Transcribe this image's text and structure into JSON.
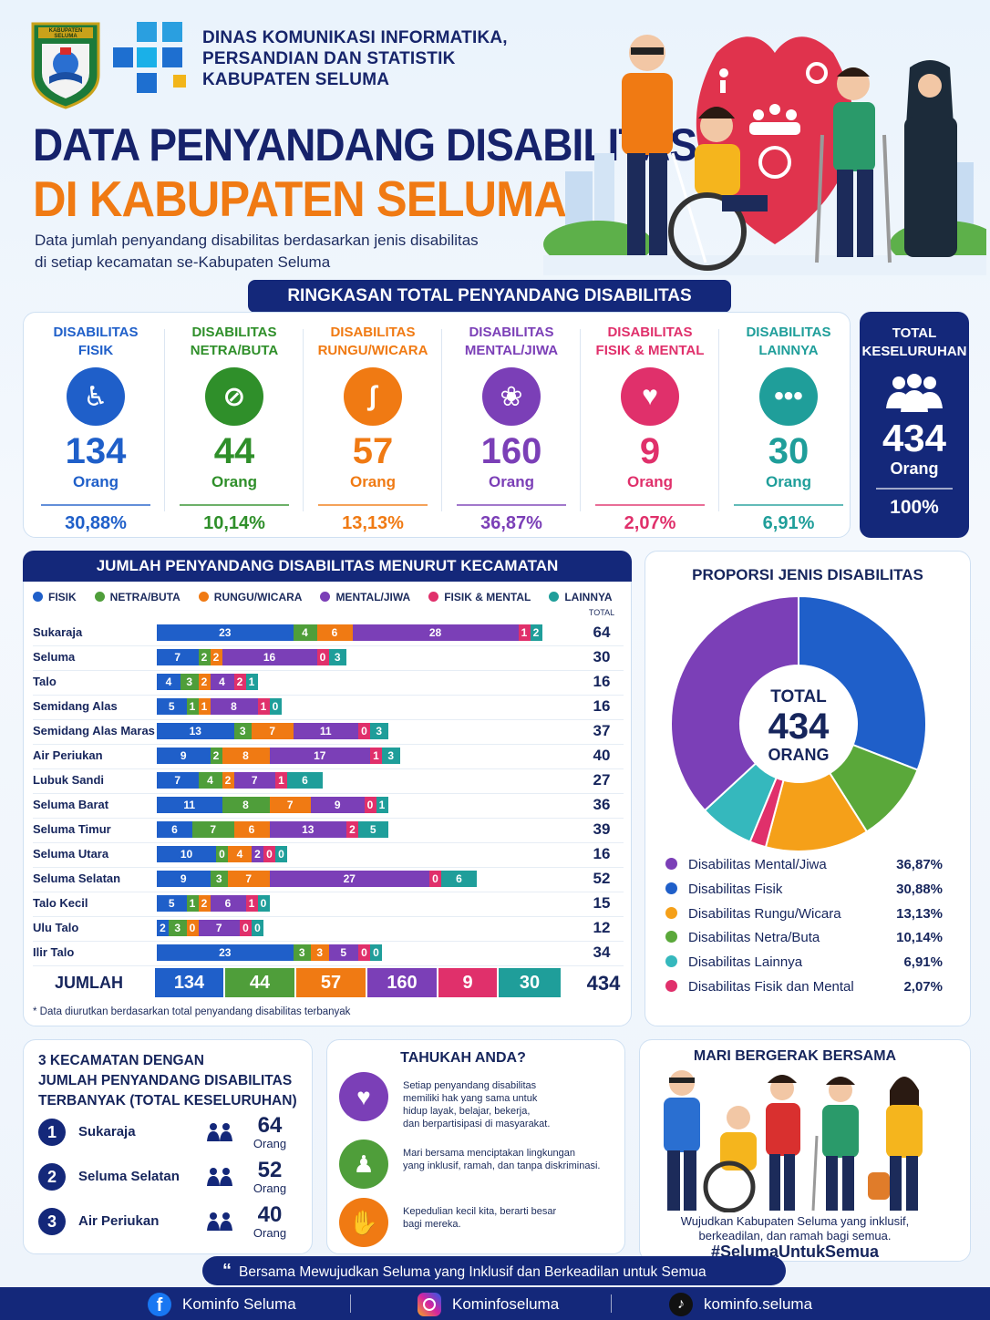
{
  "header": {
    "org_line1": "DINAS KOMUNIKASI INFORMATIKA,",
    "org_line2": "PERSANDIAN DAN STATISTIK",
    "org_line3": "KABUPATEN SELUMA",
    "logo_text": "KABUPATEN SELUMA",
    "title_line1": "DATA PENYANDANG DISABILITAS",
    "title_line2": "DI KABUPATEN SELUMA",
    "subtitle_line1": "Data jumlah penyandang disabilitas berdasarkan jenis disabilitas",
    "subtitle_line2": "di setiap kecamatan se-Kabupaten Seluma"
  },
  "summary": {
    "banner": "RINGKASAN TOTAL PENYANDANG DISABILITAS",
    "unit": "Orang",
    "items": [
      {
        "line1": "DISABILITAS",
        "line2": "FISIK",
        "value": "134",
        "pct": "30,88%",
        "color": "#1f5fc9",
        "icon": "wheelchair-icon"
      },
      {
        "line1": "DISABILITAS",
        "line2": "NETRA/BUTA",
        "value": "44",
        "pct": "10,14%",
        "color": "#2f8f2a",
        "icon": "eye-slash-icon"
      },
      {
        "line1": "DISABILITAS",
        "line2": "RUNGU/WICARA",
        "value": "57",
        "pct": "13,13%",
        "color": "#f07a13",
        "icon": "ear-icon"
      },
      {
        "line1": "DISABILITAS",
        "line2": "MENTAL/JIWA",
        "value": "160",
        "pct": "36,87%",
        "color": "#7b3fb7",
        "icon": "brain-icon"
      },
      {
        "line1": "DISABILITAS",
        "line2": "FISIK & MENTAL",
        "value": "9",
        "pct": "2,07%",
        "color": "#e0306b",
        "icon": "heart-hands-icon"
      },
      {
        "line1": "DISABILITAS",
        "line2": "LAINNYA",
        "value": "30",
        "pct": "6,91%",
        "color": "#1f9e9a",
        "icon": "dots-icon"
      }
    ],
    "total": {
      "line1": "TOTAL",
      "line2": "KESELURUHAN",
      "value": "434",
      "pct": "100%"
    }
  },
  "chart_data": [
    {
      "type": "bar",
      "stacked": true,
      "orientation": "horizontal",
      "title": "JUMLAH PENYANDANG DISABILITAS MENURUT KECAMATAN",
      "total_label": "TOTAL",
      "sum_label": "JUMLAH",
      "footnote": "* Data diurutkan berdasarkan total penyandang disabilitas terbanyak",
      "categories": [
        "Sukaraja",
        "Seluma",
        "Talo",
        "Semidang Alas",
        "Semidang Alas Maras",
        "Air Periukan",
        "Lubuk Sandi",
        "Seluma Barat",
        "Seluma Timur",
        "Seluma Utara",
        "Seluma Selatan",
        "Talo Kecil",
        "Ulu Talo",
        "Ilir Talo"
      ],
      "totals": [
        64,
        30,
        16,
        16,
        37,
        40,
        27,
        36,
        39,
        16,
        52,
        15,
        12,
        34
      ],
      "series": [
        {
          "name": "FISIK",
          "color": "#1f5fc9",
          "values": [
            23,
            7,
            4,
            5,
            13,
            9,
            7,
            11,
            6,
            10,
            9,
            5,
            2,
            23
          ]
        },
        {
          "name": "NETRA/BUTA",
          "color": "#4f9e3a",
          "values": [
            4,
            2,
            3,
            1,
            3,
            2,
            4,
            8,
            7,
            0,
            3,
            1,
            3,
            3
          ]
        },
        {
          "name": "RUNGU/WICARA",
          "color": "#f07a13",
          "values": [
            6,
            2,
            2,
            1,
            7,
            8,
            2,
            7,
            6,
            4,
            7,
            2,
            0,
            3
          ]
        },
        {
          "name": "MENTAL/JIWA",
          "color": "#7b3fb7",
          "values": [
            28,
            16,
            4,
            8,
            11,
            17,
            7,
            9,
            13,
            2,
            27,
            6,
            7,
            5
          ]
        },
        {
          "name": "FISIK & MENTAL",
          "color": "#e0306b",
          "values": [
            1,
            0,
            2,
            1,
            0,
            1,
            1,
            0,
            2,
            0,
            0,
            1,
            0,
            0
          ]
        },
        {
          "name": "LAINNYA",
          "color": "#1f9e9a",
          "values": [
            2,
            3,
            1,
            0,
            3,
            3,
            6,
            1,
            5,
            0,
            6,
            0,
            0,
            0
          ]
        }
      ],
      "sums": [
        134,
        44,
        57,
        160,
        9,
        30
      ],
      "grand_total": 434
    },
    {
      "type": "pie",
      "title": "PROPORSI JENIS DISABILITAS",
      "center_line1": "TOTAL",
      "center_value": "434",
      "center_line3": "ORANG",
      "slices": [
        {
          "label": "Disabilitas Mental/Jiwa",
          "value": 36.87,
          "pct": "36,87%",
          "color": "#7b3fb7"
        },
        {
          "label": "Disabilitas Fisik",
          "value": 30.88,
          "pct": "30,88%",
          "color": "#1f5fc9"
        },
        {
          "label": "Disabilitas Rungu/Wicara",
          "value": 13.13,
          "pct": "13,13%",
          "color": "#f5a019"
        },
        {
          "label": "Disabilitas Netra/Buta",
          "value": 10.14,
          "pct": "10,14%",
          "color": "#5aa83a"
        },
        {
          "label": "Disabilitas Lainnya",
          "value": 6.91,
          "pct": "6,91%",
          "color": "#35b8bd"
        },
        {
          "label": "Disabilitas Fisik dan Mental",
          "value": 2.07,
          "pct": "2,07%",
          "color": "#e0306b"
        }
      ],
      "draw_order": [
        1,
        3,
        2,
        5,
        4,
        0
      ]
    }
  ],
  "top3": {
    "title_line1": "3 KECAMATAN DENGAN",
    "title_line2": "JUMLAH PENYANDANG DISABILITAS",
    "title_line3": "TERBANYAK (TOTAL KESELURUHAN)",
    "unit": "Orang",
    "items": [
      {
        "rank": "1",
        "name": "Sukaraja",
        "value": "64"
      },
      {
        "rank": "2",
        "name": "Seluma Selatan",
        "value": "52"
      },
      {
        "rank": "3",
        "name": "Air Periukan",
        "value": "40"
      }
    ]
  },
  "tahukah": {
    "title": "TAHUKAH ANDA?",
    "tips": [
      {
        "lines": [
          "Setiap penyandang disabilitas",
          "memiliki hak yang sama untuk",
          "hidup layak, belajar, bekerja,",
          "dan berpartisipasi di masyarakat."
        ],
        "color": "#7b3fb7",
        "icon": "heart-hands-icon"
      },
      {
        "lines": [
          "Mari bersama menciptakan lingkungan",
          "yang inklusif, ramah, dan tanpa diskriminasi."
        ],
        "color": "#4f9e3a",
        "icon": "people-icon"
      },
      {
        "lines": [
          "Kepedulian kecil kita, berarti besar",
          "bagi mereka."
        ],
        "color": "#f07a13",
        "icon": "handshake-icon"
      }
    ]
  },
  "bergerak": {
    "title": "MARI BERGERAK BERSAMA",
    "line1": "Wujudkan Kabupaten Seluma yang inklusif,",
    "line2": "berkeadilan, dan ramah bagi semua.",
    "hashtag": "#SelumaUntukSemua"
  },
  "quote": "Bersama Mewujudkan Seluma yang Inklusif dan Berkeadilan untuk Semua",
  "footer": {
    "facebook": "Kominfo Seluma",
    "instagram": "Kominfoseluma",
    "tiktok": "kominfo.seluma"
  }
}
